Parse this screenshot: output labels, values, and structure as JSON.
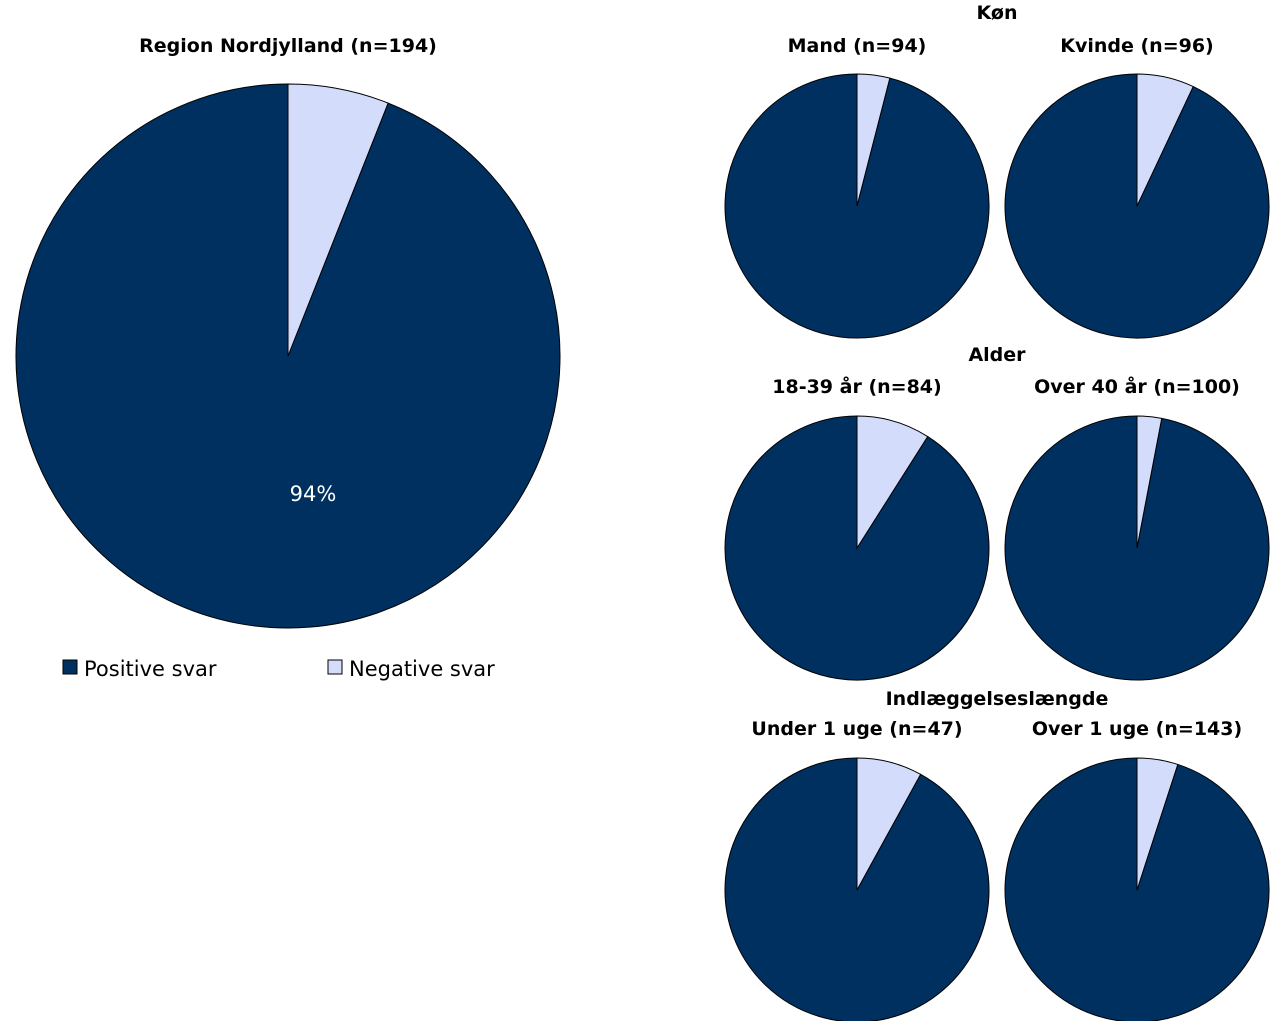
{
  "colors": {
    "positive": "#003060",
    "negative": "#d4dcfc",
    "stroke": "#000000",
    "data_label": "#ffffff"
  },
  "legend": {
    "items": [
      "Positive svar",
      "Negative svar"
    ],
    "placement": "bottom"
  },
  "chart_data": [
    {
      "type": "pie",
      "title": "Region Nordjylland (n=194)",
      "categories": [
        "Positive svar",
        "Negative svar"
      ],
      "values": [
        94,
        6
      ],
      "data_label": "94%"
    },
    {
      "type": "pie",
      "group": "Køn",
      "title": "Mand (n=94)",
      "categories": [
        "Positive svar",
        "Negative svar"
      ],
      "values": [
        96,
        4
      ]
    },
    {
      "type": "pie",
      "group": "Køn",
      "title": "Kvinde (n=96)",
      "categories": [
        "Positive svar",
        "Negative svar"
      ],
      "values": [
        93,
        7
      ]
    },
    {
      "type": "pie",
      "group": "Alder",
      "title": "18-39 år (n=84)",
      "categories": [
        "Positive svar",
        "Negative svar"
      ],
      "values": [
        91,
        9
      ]
    },
    {
      "type": "pie",
      "group": "Alder",
      "title": "Over 40 år (n=100)",
      "categories": [
        "Positive svar",
        "Negative svar"
      ],
      "values": [
        97,
        3
      ]
    },
    {
      "type": "pie",
      "group": "Indlæggelseslængde",
      "title": "Under 1 uge (n=47)",
      "categories": [
        "Positive svar",
        "Negative svar"
      ],
      "values": [
        92,
        8
      ]
    },
    {
      "type": "pie",
      "group": "Indlæggelseslængde",
      "title": "Over 1 uge (n=143)",
      "categories": [
        "Positive svar",
        "Negative svar"
      ],
      "values": [
        95,
        5
      ]
    }
  ]
}
